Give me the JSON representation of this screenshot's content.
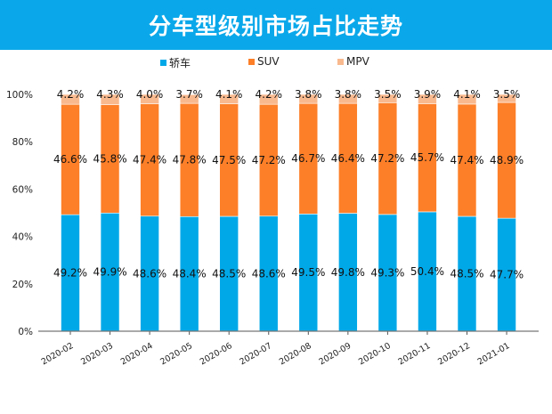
{
  "chart_data": {
    "type": "bar",
    "stacked": true,
    "title": "分车型级别市场占比走势",
    "categories": [
      "2020-02",
      "2020-03",
      "2020-04",
      "2020-05",
      "2020-06",
      "2020-07",
      "2020-08",
      "2020-09",
      "2020-10",
      "2020-11",
      "2020-12",
      "2021-01"
    ],
    "series": [
      {
        "name": "轿车",
        "color": "#00a8e8",
        "values": [
          49.2,
          49.9,
          48.6,
          48.4,
          48.5,
          48.6,
          49.5,
          49.8,
          49.3,
          50.4,
          48.5,
          47.7
        ]
      },
      {
        "name": "SUV",
        "color": "#fd7f28",
        "values": [
          46.6,
          45.8,
          47.4,
          47.8,
          47.5,
          47.2,
          46.7,
          46.4,
          47.2,
          45.7,
          47.4,
          48.9
        ]
      },
      {
        "name": "MPV",
        "color": "#f9b98e",
        "values": [
          4.2,
          4.3,
          4.0,
          3.7,
          4.1,
          4.2,
          3.8,
          3.8,
          3.5,
          3.9,
          4.1,
          3.5
        ]
      }
    ],
    "yticks": [
      "0%",
      "20%",
      "40%",
      "60%",
      "80%",
      "100%"
    ],
    "ylim": [
      0,
      100
    ],
    "grid": false,
    "legend": "top-center",
    "data_labels": true
  }
}
